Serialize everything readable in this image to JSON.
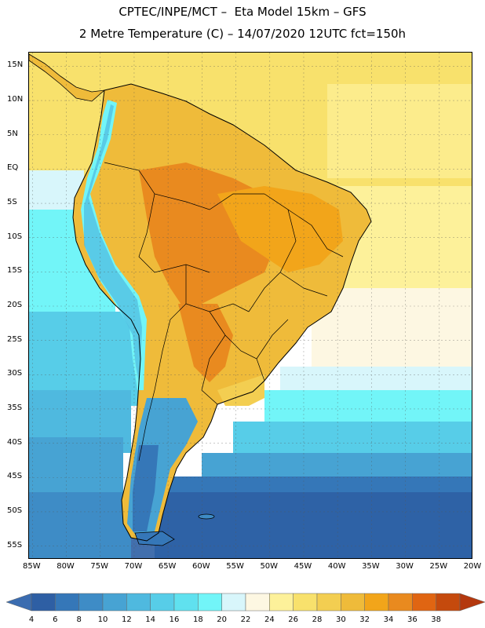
{
  "title": {
    "line1": "CPTEC/INPE/MCT –  Eta Model 15km – GFS",
    "line2": "2 Metre Temperature (C) – 14/07/2020 12UTC fct=150h"
  },
  "map": {
    "lat_labels": [
      "15N",
      "10N",
      "5N",
      "EQ",
      "5S",
      "10S",
      "15S",
      "20S",
      "25S",
      "30S",
      "35S",
      "40S",
      "45S",
      "50S",
      "55S"
    ],
    "lon_labels": [
      "85W",
      "80W",
      "75W",
      "70W",
      "65W",
      "60W",
      "55W",
      "50W",
      "45W",
      "40W",
      "35W",
      "30W",
      "25W",
      "20W"
    ],
    "lat_values": [
      15,
      10,
      5,
      0,
      -5,
      -10,
      -15,
      -20,
      -25,
      -30,
      -35,
      -40,
      -45,
      -50,
      -55
    ],
    "lon_values": [
      -85,
      -80,
      -75,
      -70,
      -65,
      -60,
      -55,
      -50,
      -45,
      -40,
      -35,
      -30,
      -25,
      -20
    ],
    "extent": {
      "lon_min": -85.5,
      "lon_max": -20,
      "lat_min": -57,
      "lat_max": 17
    }
  },
  "colorbar": {
    "labels": [
      "4",
      "6",
      "8",
      "10",
      "12",
      "14",
      "16",
      "18",
      "20",
      "22",
      "24",
      "26",
      "28",
      "30",
      "32",
      "34",
      "36",
      "38"
    ],
    "under_color": "#3a6cb0",
    "over_color": "#b4380e",
    "colors": [
      "#2e5fa4",
      "#3577b8",
      "#3e8cc6",
      "#47a3d3",
      "#4fb9df",
      "#57cde8",
      "#60e1ef",
      "#72f5f8",
      "#d8f6fb",
      "#fdf7e2",
      "#fdf19a",
      "#f8e16c",
      "#f3ce51",
      "#efbb3a",
      "#f2a51a",
      "#e98a1f",
      "#e06512",
      "#c54a0d"
    ]
  }
}
